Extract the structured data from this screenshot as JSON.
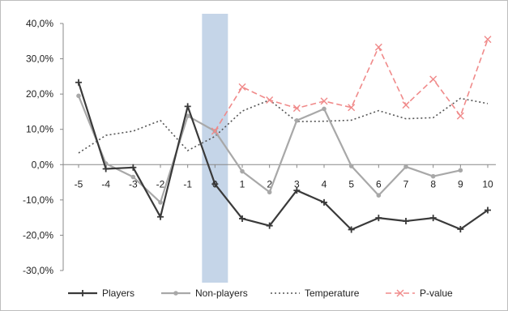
{
  "chart_data": {
    "type": "line",
    "categories": [
      "-5",
      "-4",
      "-3",
      "-2",
      "-1",
      "0",
      "1",
      "2",
      "3",
      "4",
      "5",
      "6",
      "7",
      "8",
      "9",
      "10"
    ],
    "ylim": [
      -30,
      40
    ],
    "yticks": [
      {
        "value": 40,
        "label": "40,0%"
      },
      {
        "value": 30,
        "label": "30,0%"
      },
      {
        "value": 20,
        "label": "20,0%"
      },
      {
        "value": 10,
        "label": "10,0%"
      },
      {
        "value": 0,
        "label": "0,0%"
      },
      {
        "value": -10,
        "label": "-10,0%"
      },
      {
        "value": -20,
        "label": "-20,0%"
      },
      {
        "value": -30,
        "label": "-30,0%"
      }
    ],
    "highlight_category": "0",
    "grid": false,
    "legend_position": "bottom",
    "series": [
      {
        "name": "Players",
        "color": "#3a3a3a",
        "style": "solid",
        "marker": "plus",
        "values": [
          23.3,
          -1.2,
          -0.8,
          -14.8,
          16.5,
          -5.5,
          -15.3,
          -17.3,
          -7.3,
          -10.7,
          -18.4,
          -15.1,
          -16.0,
          -15.1,
          -18.3,
          -12.9
        ]
      },
      {
        "name": "Non-players",
        "color": "#a8a8a8",
        "style": "solid",
        "marker": "circle",
        "values": [
          19.5,
          0.3,
          -3.5,
          -10.7,
          13.8,
          9.5,
          -1.9,
          -7.8,
          12.5,
          15.8,
          -0.4,
          -8.7,
          -0.6,
          -3.3,
          -1.6,
          null
        ]
      },
      {
        "name": "Temperature",
        "color": "#555555",
        "style": "dotted",
        "marker": "none",
        "values": [
          3.3,
          8.3,
          9.5,
          12.5,
          4.0,
          8.0,
          15.2,
          18.3,
          12.2,
          12.3,
          12.6,
          15.3,
          13.0,
          13.3,
          18.8,
          17.3
        ]
      },
      {
        "name": "P-value",
        "color": "#f08a8a",
        "style": "dashed",
        "marker": "x",
        "values": [
          null,
          null,
          null,
          null,
          null,
          9.5,
          22.0,
          18.3,
          16.0,
          18.0,
          16.2,
          33.3,
          16.9,
          24.2,
          13.8,
          35.5
        ]
      }
    ]
  }
}
